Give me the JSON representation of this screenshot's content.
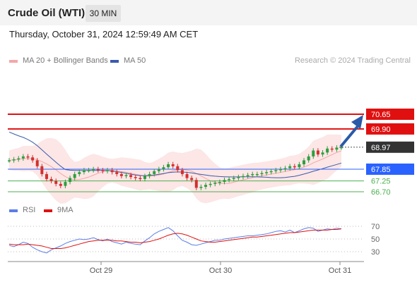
{
  "header": {
    "title": "Crude Oil (WTI)",
    "timeframe": "30 MIN"
  },
  "timestamp": "Thursday, October 31, 2024 12:59:49 AM CET",
  "legend": {
    "bollinger": "MA 20 + Bollinger Bands",
    "ma50": "MA 50",
    "research": "Research © 2024 Trading Central",
    "rsi": "RSI",
    "ma9": "9MA"
  },
  "colors": {
    "bollinger": "#f4a7a7",
    "ma50": "#3b5ba9",
    "resistance": "#e01010",
    "current": "#333333",
    "pivot": "#2962ff",
    "support": "#4caf50",
    "rsi": "#5b7ee5",
    "ma9": "#e01010",
    "candle_up": "#2e9e3e",
    "candle_down": "#d32f2f"
  },
  "levels": [
    {
      "value": 70.65,
      "label": "70.65",
      "kind": "resistance"
    },
    {
      "value": 69.9,
      "label": "69.90",
      "kind": "resistance"
    },
    {
      "value": 68.97,
      "label": "68.97",
      "kind": "current"
    },
    {
      "value": 67.85,
      "label": "67.85",
      "kind": "pivot"
    },
    {
      "value": 67.25,
      "label": "67.25",
      "kind": "support"
    },
    {
      "value": 66.7,
      "label": "66.70",
      "kind": "support"
    }
  ],
  "rsi_ticks": [
    "70",
    "50",
    "30"
  ],
  "x_ticks": [
    "Oct 29",
    "Oct 30",
    "Oct 31"
  ],
  "price_series": [
    68.3,
    68.35,
    68.4,
    68.5,
    68.45,
    68.3,
    68.0,
    67.6,
    67.35,
    67.25,
    67.1,
    67.0,
    67.2,
    67.4,
    67.6,
    67.7,
    67.8,
    67.8,
    67.85,
    67.8,
    67.75,
    67.8,
    67.7,
    67.6,
    67.5,
    67.55,
    67.45,
    67.4,
    67.35,
    67.5,
    67.6,
    67.75,
    67.85,
    67.95,
    68.1,
    68.0,
    67.8,
    67.6,
    67.4,
    67.3,
    66.9,
    66.95,
    67.05,
    67.1,
    67.15,
    67.2,
    67.3,
    67.35,
    67.4,
    67.45,
    67.5,
    67.55,
    67.6,
    67.6,
    67.65,
    67.7,
    67.75,
    67.8,
    67.85,
    67.9,
    68.0,
    67.95,
    68.1,
    68.3,
    68.5,
    68.8,
    68.6,
    68.7,
    68.9,
    68.85,
    68.95,
    68.97
  ],
  "rsi_series": [
    40,
    38,
    41,
    45,
    43,
    37,
    33,
    30,
    28,
    33,
    36,
    39,
    43,
    46,
    48,
    50,
    49,
    50,
    52,
    49,
    47,
    50,
    46,
    44,
    42,
    45,
    43,
    42,
    41,
    47,
    52,
    58,
    62,
    65,
    68,
    63,
    55,
    48,
    45,
    41,
    40,
    42,
    44,
    46,
    48,
    48,
    50,
    51,
    52,
    53,
    54,
    55,
    55,
    56,
    57,
    58,
    60,
    62,
    63,
    61,
    64,
    60,
    63,
    66,
    68,
    67,
    62,
    64,
    66,
    65,
    67,
    66
  ],
  "ma9_series": [
    42,
    41,
    41,
    41,
    42,
    41,
    40,
    39,
    37,
    35,
    35,
    35,
    36,
    38,
    40,
    42,
    44,
    46,
    47,
    48,
    48,
    48,
    48,
    47,
    47,
    46,
    45,
    45,
    44,
    45,
    46,
    48,
    50,
    53,
    56,
    58,
    59,
    58,
    56,
    53,
    50,
    47,
    46,
    45,
    45,
    46,
    47,
    48,
    49,
    50,
    51,
    52,
    53,
    53,
    54,
    55,
    56,
    57,
    58,
    59,
    60,
    60,
    61,
    62,
    63,
    64,
    64,
    64,
    64,
    65,
    65,
    66
  ]
}
